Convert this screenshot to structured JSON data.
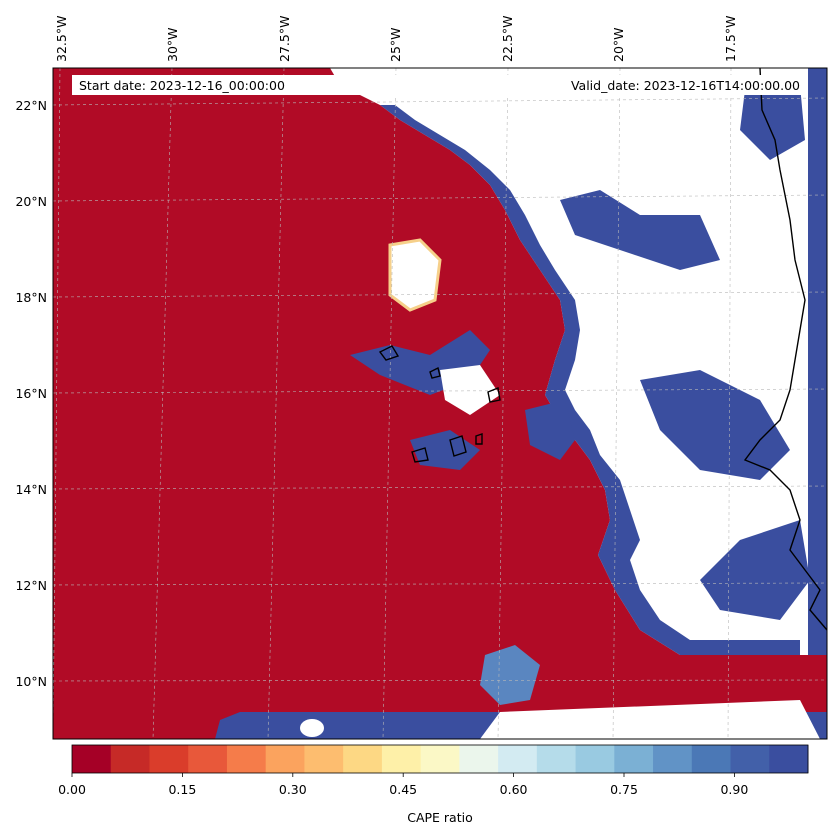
{
  "map": {
    "start_date": "Start date: 2023-12-16_00:00:00",
    "valid_date": "Valid_date: 2023-12-16T14:00:00.00",
    "lon_labels": [
      "32.5°W",
      "30°W",
      "27.5°W",
      "25°W",
      "22.5°W",
      "20°W",
      "17.5°W"
    ],
    "lat_labels": [
      "22°N",
      "20°N",
      "18°N",
      "16°N",
      "14°N",
      "12°N",
      "10°N"
    ],
    "colors": {
      "low": "#b10b26",
      "high": "#3a4e9f",
      "masked": "#ffffff",
      "coast": "#000000",
      "grid": "#b8b8b8"
    }
  },
  "colorbar": {
    "label": "CAPE ratio",
    "ticks": [
      "0.00",
      "0.15",
      "0.30",
      "0.45",
      "0.60",
      "0.75",
      "0.90"
    ],
    "colors": [
      "#a50026",
      "#c62a27",
      "#da3d2b",
      "#e8583a",
      "#f57c4a",
      "#fba35e",
      "#fdbd6f",
      "#fdd884",
      "#fef0a8",
      "#fbf8c6",
      "#ebf6ec",
      "#d3ebf2",
      "#b5dcea",
      "#99cae1",
      "#7bb0d4",
      "#6193c6",
      "#4b78b6",
      "#4260a9",
      "#3a4e9f"
    ]
  }
}
